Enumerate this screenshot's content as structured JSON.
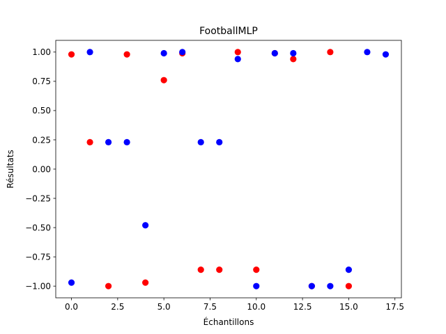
{
  "chart_data": {
    "type": "scatter",
    "title": "FootballMLP",
    "xlabel": "Échantillons",
    "ylabel": "Résultats",
    "xlim": [
      -0.85,
      17.85
    ],
    "ylim": [
      -1.1,
      1.1
    ],
    "xticks": [
      0.0,
      2.5,
      5.0,
      7.5,
      10.0,
      12.5,
      15.0,
      17.5
    ],
    "xtick_labels": [
      "0.0",
      "2.5",
      "5.0",
      "7.5",
      "10.0",
      "12.5",
      "15.0",
      "17.5"
    ],
    "yticks": [
      -1.0,
      -0.75,
      -0.5,
      -0.25,
      0.0,
      0.25,
      0.5,
      0.75,
      1.0
    ],
    "ytick_labels": [
      "−1.00",
      "−0.75",
      "−0.50",
      "−0.25",
      "0.00",
      "0.25",
      "0.50",
      "0.75",
      "1.00"
    ],
    "grid": false,
    "series": [
      {
        "color": "#ff0000",
        "points": [
          [
            0,
            0.98
          ],
          [
            1,
            0.23
          ],
          [
            2,
            -1.0
          ],
          [
            3,
            0.98
          ],
          [
            4,
            -0.97
          ],
          [
            5,
            0.76
          ],
          [
            6,
            0.99
          ],
          [
            7,
            -0.86
          ],
          [
            8,
            -0.86
          ],
          [
            9,
            1.0
          ],
          [
            10,
            -0.86
          ],
          [
            11,
            0.99
          ],
          [
            12,
            0.94
          ],
          [
            13,
            -1.0
          ],
          [
            14,
            1.0
          ],
          [
            15,
            -1.0
          ]
        ]
      },
      {
        "color": "#0000ff",
        "points": [
          [
            0,
            -0.97
          ],
          [
            1,
            1.0
          ],
          [
            2,
            0.23
          ],
          [
            3,
            0.23
          ],
          [
            4,
            -0.48
          ],
          [
            5,
            0.99
          ],
          [
            6,
            1.0
          ],
          [
            7,
            0.23
          ],
          [
            8,
            0.23
          ],
          [
            9,
            0.94
          ],
          [
            10,
            -1.0
          ],
          [
            11,
            0.99
          ],
          [
            12,
            0.99
          ],
          [
            13,
            -1.0
          ],
          [
            14,
            -1.0
          ],
          [
            15,
            -0.86
          ],
          [
            16,
            1.0
          ],
          [
            17,
            0.98
          ]
        ]
      }
    ]
  }
}
